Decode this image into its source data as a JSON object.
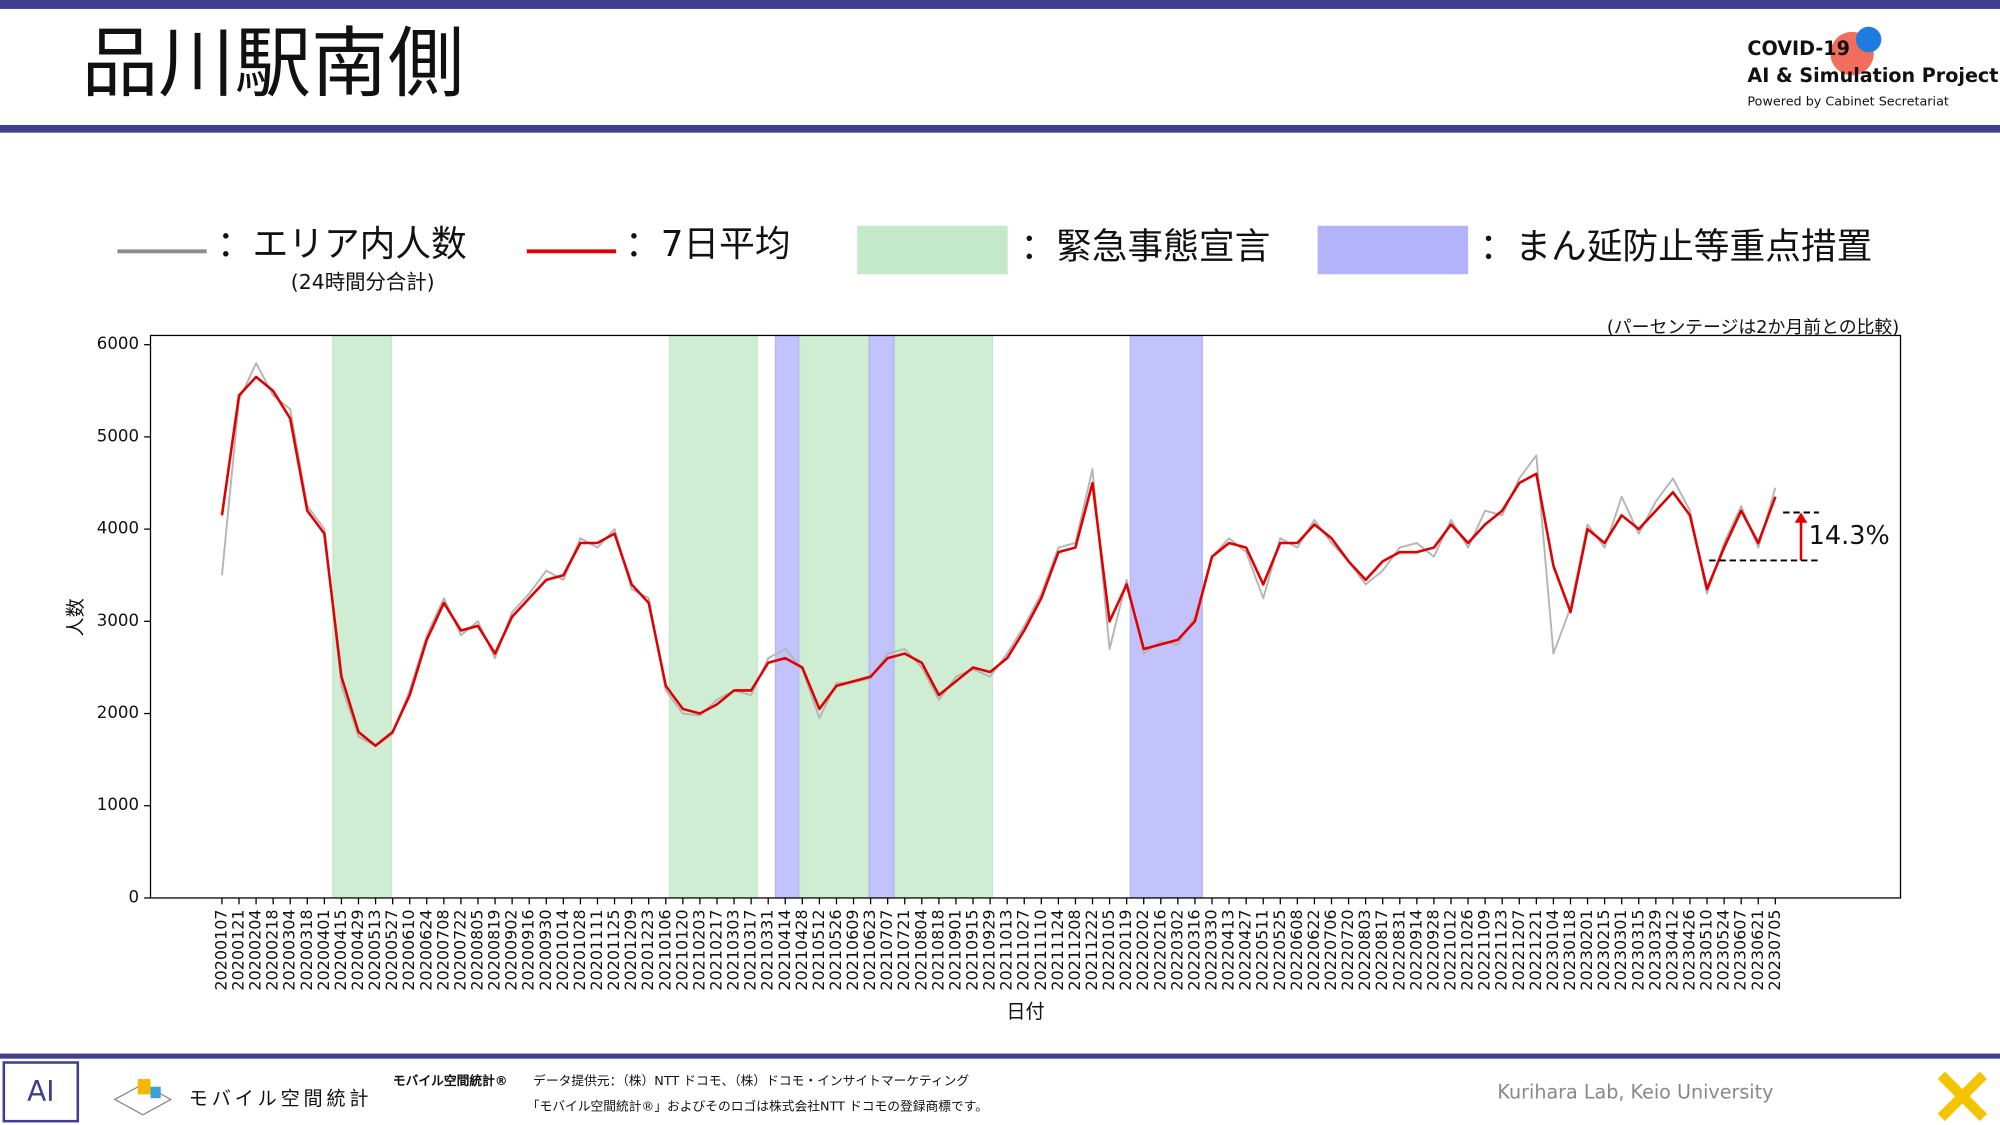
{
  "header": {
    "title": "品川駅南側",
    "logo_title": "COVID-19",
    "logo_subtitle": "AI & Simulation Project",
    "logo_caption": "Powered by Cabinet Secretariat"
  },
  "chart_data": {
    "type": "line",
    "note": "(パーセンテージは2か月前との比較)",
    "x_label": "日付",
    "y_label": "人数",
    "categories": [
      "20200107",
      "20200121",
      "20200204",
      "20200218",
      "20200304",
      "20200318",
      "20200401",
      "20200415",
      "20200429",
      "20200513",
      "20200527",
      "20200610",
      "20200624",
      "20200708",
      "20200722",
      "20200805",
      "20200819",
      "20200902",
      "20200916",
      "20200930",
      "20201014",
      "20201028",
      "20201111",
      "20201125",
      "20201209",
      "20201223",
      "20210106",
      "20210120",
      "20210203",
      "20210217",
      "20210303",
      "20210317",
      "20210331",
      "20210414",
      "20210428",
      "20210512",
      "20210526",
      "20210609",
      "20210623",
      "20210707",
      "20210721",
      "20210804",
      "20210818",
      "20210901",
      "20210915",
      "20210929",
      "20211013",
      "20211027",
      "20211110",
      "20211124",
      "20211208",
      "20211222",
      "20220105",
      "20220119",
      "20220202",
      "20220216",
      "20220302",
      "20220316",
      "20220330",
      "20220413",
      "20220427",
      "20220511",
      "20220525",
      "20220608",
      "20220622",
      "20220706",
      "20220720",
      "20220803",
      "20220817",
      "20220831",
      "20220914",
      "20220928",
      "20221012",
      "20221026",
      "20221109",
      "20221123",
      "20221207",
      "20221221",
      "20230104",
      "20230118",
      "20230201",
      "20230215",
      "20230301",
      "20230315",
      "20230329",
      "20230412",
      "20230426",
      "20230510",
      "20230524",
      "20230607",
      "20230621",
      "20230705"
    ],
    "series": [
      {
        "name": "：エリア内人数",
        "note": "(24時間分合計)",
        "color": "#b5b5b5",
        "legend_color": "#8c8c8c",
        "values": [
          3500,
          5400,
          5800,
          5450,
          5300,
          4250,
          4000,
          2300,
          1750,
          1650,
          1780,
          2250,
          2850,
          3250,
          2850,
          3000,
          2600,
          3100,
          3300,
          3550,
          3450,
          3900,
          3800,
          4000,
          3350,
          3250,
          2250,
          2000,
          1980,
          2150,
          2250,
          2200,
          2600,
          2700,
          2480,
          1950,
          2330,
          2340,
          2380,
          2650,
          2700,
          2500,
          2150,
          2400,
          2480,
          2400,
          2650,
          2950,
          3300,
          3800,
          3850,
          4650,
          2700,
          3450,
          2650,
          2780,
          2750,
          3050,
          3700,
          3900,
          3750,
          3250,
          3900,
          3800,
          4100,
          3850,
          3650,
          3400,
          3550,
          3800,
          3850,
          3700,
          4100,
          3800,
          4200,
          4150,
          4550,
          4800,
          2650,
          3150,
          4050,
          3800,
          4350,
          3950,
          4300,
          4550,
          4200,
          3300,
          3850,
          4250,
          3800,
          4450
        ]
      },
      {
        "name": "：7日平均",
        "color": "#e00000",
        "values": [
          4150,
          5450,
          5650,
          5500,
          5200,
          4200,
          3950,
          2400,
          1800,
          1650,
          1800,
          2200,
          2800,
          3200,
          2900,
          2950,
          2650,
          3050,
          3250,
          3450,
          3500,
          3850,
          3850,
          3950,
          3400,
          3200,
          2300,
          2050,
          2000,
          2100,
          2250,
          2250,
          2550,
          2600,
          2500,
          2050,
          2300,
          2350,
          2400,
          2600,
          2650,
          2550,
          2200,
          2350,
          2500,
          2450,
          2600,
          2900,
          3250,
          3750,
          3800,
          4500,
          3000,
          3400,
          2700,
          2750,
          2800,
          3000,
          3700,
          3850,
          3800,
          3400,
          3850,
          3850,
          4050,
          3900,
          3650,
          3450,
          3650,
          3750,
          3750,
          3800,
          4050,
          3850,
          4050,
          4200,
          4500,
          4600,
          3600,
          3100,
          4000,
          3850,
          4150,
          4000,
          4200,
          4400,
          4150,
          3350,
          3800,
          4200,
          3850,
          4350
        ]
      }
    ],
    "periods": [
      {
        "name": "：緊急事態宣言",
        "color": "#c3e9c8",
        "ranges": [
          [
            "20200407",
            "20200525"
          ],
          [
            "20210108",
            "20210321"
          ],
          [
            "20210425",
            "20210620"
          ],
          [
            "20210712",
            "20210930"
          ]
        ]
      },
      {
        "name": "：まん延防止等重点措置",
        "color": "#b3b3fb",
        "ranges": [
          [
            "20210405",
            "20210424"
          ],
          [
            "20210621",
            "20210711"
          ],
          [
            "20220121",
            "20220321"
          ]
        ]
      }
    ],
    "annotation": {
      "text": "14.3%",
      "from": 3660,
      "to": 4180
    },
    "ylim": [
      0,
      6100
    ],
    "yticks": [
      0,
      1000,
      2000,
      3000,
      4000,
      5000,
      6000
    ]
  },
  "footer": {
    "logo_text": "モバイル空間統計",
    "brand": "モバイル空間統計®",
    "source": "データ提供元：（株）NTT ドコモ、（株）ドコモ・インサイトマーケティング",
    "trademark": "「モバイル空間統計®」およびそのロゴは株式会社NTT ドコモの登録商標です。",
    "credit": "Kurihara Lab, Keio University"
  }
}
